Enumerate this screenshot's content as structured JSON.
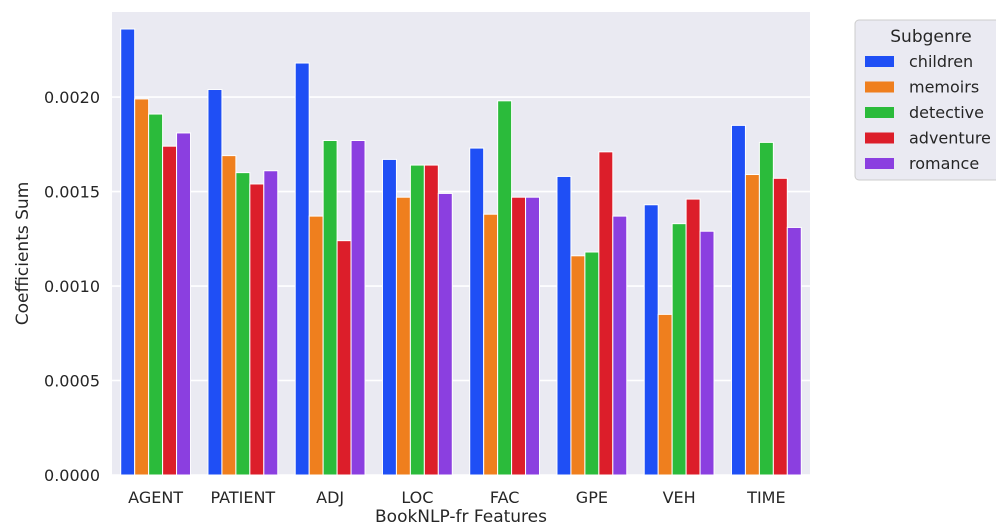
{
  "chart_data": {
    "type": "bar",
    "title": "",
    "xlabel": "BookNLP-fr Features",
    "ylabel": "Coefficients Sum",
    "categories": [
      "AGENT",
      "PATIENT",
      "ADJ",
      "LOC",
      "FAC",
      "GPE",
      "VEH",
      "TIME"
    ],
    "ylim": [
      0,
      0.00245
    ],
    "yticks": [
      "0.0000",
      "0.0005",
      "0.0010",
      "0.0015",
      "0.0020"
    ],
    "ytick_values": [
      0,
      0.0005,
      0.001,
      0.0015,
      0.002
    ],
    "grid": true,
    "legend": {
      "title": "Subgenre",
      "position": "outside-top-right"
    },
    "series": [
      {
        "name": "children",
        "color": "#1f4ff5",
        "values": [
          0.00236,
          0.00204,
          0.00218,
          0.00167,
          0.00173,
          0.00158,
          0.00143,
          0.00185
        ]
      },
      {
        "name": "memoirs",
        "color": "#ef7f1e",
        "values": [
          0.00199,
          0.00169,
          0.00137,
          0.00147,
          0.00138,
          0.00116,
          0.00085,
          0.00159
        ]
      },
      {
        "name": "detective",
        "color": "#2bbb3b",
        "values": [
          0.00191,
          0.0016,
          0.00177,
          0.00164,
          0.00198,
          0.00118,
          0.00133,
          0.00176
        ]
      },
      {
        "name": "adventure",
        "color": "#dc1e2a",
        "values": [
          0.00174,
          0.00154,
          0.00124,
          0.00164,
          0.00147,
          0.00171,
          0.00146,
          0.00157
        ]
      },
      {
        "name": "romance",
        "color": "#8b3fe0",
        "values": [
          0.00181,
          0.00161,
          0.00177,
          0.00149,
          0.00147,
          0.00137,
          0.00129,
          0.00131
        ]
      }
    ],
    "background_color": "#eaeaf2",
    "grid_color": "#ffffff"
  }
}
